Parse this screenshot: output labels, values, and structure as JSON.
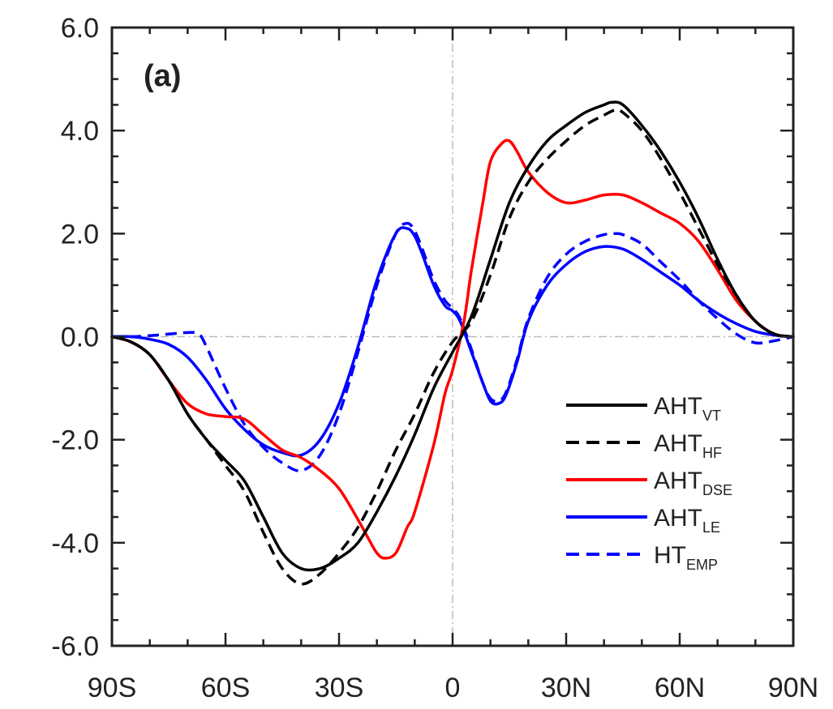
{
  "chart_data": {
    "type": "line",
    "panel_label": "(a)",
    "title": "",
    "xlabel": "",
    "ylabel": "",
    "xlim": [
      -90,
      90
    ],
    "ylim": [
      -6,
      6
    ],
    "x_ticks": [
      -90,
      -60,
      -30,
      0,
      30,
      60,
      90
    ],
    "x_tick_labels": [
      "90S",
      "60S",
      "30S",
      "0",
      "30N",
      "60N",
      "90N"
    ],
    "y_ticks": [
      -6,
      -4,
      -2,
      0,
      2,
      4,
      6
    ],
    "y_tick_labels": [
      "-6.0",
      "-4.0",
      "-2.0",
      "0.0",
      "2.0",
      "4.0",
      "6.0"
    ],
    "reference_lines": {
      "y": 0,
      "x": 0,
      "style": "dash-dot",
      "color": "#bbbbbb"
    },
    "grid": false,
    "legend_position": "lower-right",
    "series": [
      {
        "name": "AHT",
        "name_sub": "VT",
        "color": "#000000",
        "dash": "solid",
        "x": [
          -90,
          -85,
          -80,
          -75,
          -70,
          -65,
          -60,
          -55,
          -50,
          -45,
          -40,
          -35,
          -30,
          -25,
          -20,
          -15,
          -10,
          -5,
          0,
          5,
          10,
          15,
          20,
          25,
          30,
          35,
          40,
          42,
          45,
          50,
          55,
          60,
          65,
          70,
          75,
          80,
          85,
          90
        ],
        "y": [
          0,
          -0.1,
          -0.35,
          -0.85,
          -1.5,
          -2.0,
          -2.4,
          -2.8,
          -3.5,
          -4.2,
          -4.5,
          -4.5,
          -4.3,
          -4.0,
          -3.4,
          -2.7,
          -1.9,
          -1.0,
          -0.3,
          0.4,
          1.5,
          2.6,
          3.3,
          3.8,
          4.1,
          4.35,
          4.5,
          4.55,
          4.5,
          4.1,
          3.6,
          3.0,
          2.3,
          1.5,
          0.8,
          0.3,
          0.05,
          0
        ]
      },
      {
        "name": "AHT",
        "name_sub": "HF",
        "color": "#000000",
        "dash": "dashed",
        "x": [
          -90,
          -85,
          -80,
          -75,
          -70,
          -65,
          -60,
          -55,
          -50,
          -45,
          -40,
          -35,
          -30,
          -25,
          -20,
          -15,
          -10,
          -5,
          0,
          5,
          10,
          15,
          20,
          25,
          30,
          35,
          40,
          43,
          45,
          50,
          55,
          60,
          65,
          70,
          75,
          80,
          85,
          90
        ],
        "y": [
          0,
          -0.1,
          -0.35,
          -0.85,
          -1.5,
          -2.0,
          -2.5,
          -3.0,
          -3.8,
          -4.5,
          -4.8,
          -4.6,
          -4.2,
          -3.7,
          -3.0,
          -2.2,
          -1.5,
          -0.7,
          -0.1,
          0.3,
          1.2,
          2.3,
          3.0,
          3.45,
          3.8,
          4.1,
          4.3,
          4.4,
          4.35,
          4.0,
          3.45,
          2.8,
          2.1,
          1.4,
          0.8,
          0.3,
          0.05,
          0
        ]
      },
      {
        "name": "AHT",
        "name_sub": "DSE",
        "color": "#ff0000",
        "dash": "solid",
        "x": [
          -90,
          -85,
          -80,
          -75,
          -70,
          -65,
          -60,
          -55,
          -50,
          -45,
          -40,
          -35,
          -30,
          -25,
          -22,
          -20,
          -18,
          -15,
          -12,
          -10,
          -5,
          -2,
          0,
          3,
          5,
          8,
          10,
          13,
          15,
          17,
          20,
          25,
          30,
          35,
          40,
          45,
          50,
          55,
          60,
          65,
          70,
          75,
          80,
          85,
          90
        ],
        "y": [
          0,
          -0.1,
          -0.35,
          -0.85,
          -1.3,
          -1.5,
          -1.55,
          -1.6,
          -1.9,
          -2.2,
          -2.35,
          -2.6,
          -2.95,
          -3.55,
          -3.95,
          -4.2,
          -4.3,
          -4.2,
          -3.7,
          -3.4,
          -2.1,
          -1.1,
          -0.65,
          0.3,
          1.3,
          2.6,
          3.4,
          3.75,
          3.8,
          3.6,
          3.2,
          2.8,
          2.6,
          2.65,
          2.75,
          2.75,
          2.6,
          2.4,
          2.2,
          1.85,
          1.3,
          0.7,
          0.3,
          0.05,
          0
        ]
      },
      {
        "name": "AHT",
        "name_sub": "LE",
        "color": "#0000ff",
        "dash": "solid",
        "x": [
          -90,
          -85,
          -80,
          -75,
          -70,
          -65,
          -60,
          -55,
          -50,
          -45,
          -40,
          -35,
          -30,
          -25,
          -20,
          -15,
          -12,
          -10,
          -8,
          -5,
          -2,
          0,
          2,
          5,
          8,
          10,
          12,
          14,
          17,
          20,
          25,
          30,
          35,
          40,
          45,
          50,
          55,
          60,
          65,
          70,
          75,
          80,
          85,
          90
        ],
        "y": [
          0,
          0,
          -0.05,
          -0.15,
          -0.4,
          -0.85,
          -1.4,
          -1.8,
          -2.1,
          -2.25,
          -2.3,
          -2.0,
          -1.3,
          -0.2,
          1.1,
          2.0,
          2.1,
          1.95,
          1.6,
          1.0,
          0.6,
          0.5,
          0.3,
          -0.3,
          -0.9,
          -1.25,
          -1.3,
          -1.15,
          -0.5,
          0.3,
          1.0,
          1.4,
          1.65,
          1.75,
          1.7,
          1.5,
          1.25,
          1.0,
          0.7,
          0.45,
          0.25,
          0.1,
          0.03,
          0
        ]
      },
      {
        "name": "HT",
        "name_sub": "EMP",
        "color": "#0000ff",
        "dash": "dashed",
        "x": [
          -90,
          -85,
          -80,
          -75,
          -70,
          -67,
          -65,
          -60,
          -55,
          -50,
          -45,
          -40,
          -35,
          -30,
          -25,
          -20,
          -15,
          -12,
          -10,
          -8,
          -5,
          -2,
          0,
          2,
          5,
          8,
          10,
          12,
          14,
          17,
          20,
          25,
          30,
          35,
          40,
          43,
          45,
          50,
          55,
          60,
          65,
          70,
          75,
          80,
          85,
          90
        ],
        "y": [
          0,
          0,
          0.02,
          0.05,
          0.08,
          0.05,
          -0.2,
          -1.0,
          -1.7,
          -2.15,
          -2.45,
          -2.6,
          -2.3,
          -1.5,
          -0.3,
          1.0,
          2.0,
          2.2,
          2.05,
          1.7,
          1.1,
          0.7,
          0.55,
          0.35,
          -0.25,
          -0.9,
          -1.2,
          -1.25,
          -1.1,
          -0.45,
          0.35,
          1.15,
          1.6,
          1.85,
          1.98,
          2.0,
          1.98,
          1.8,
          1.45,
          1.1,
          0.7,
          0.35,
          0.05,
          -0.12,
          -0.08,
          0
        ]
      }
    ]
  }
}
